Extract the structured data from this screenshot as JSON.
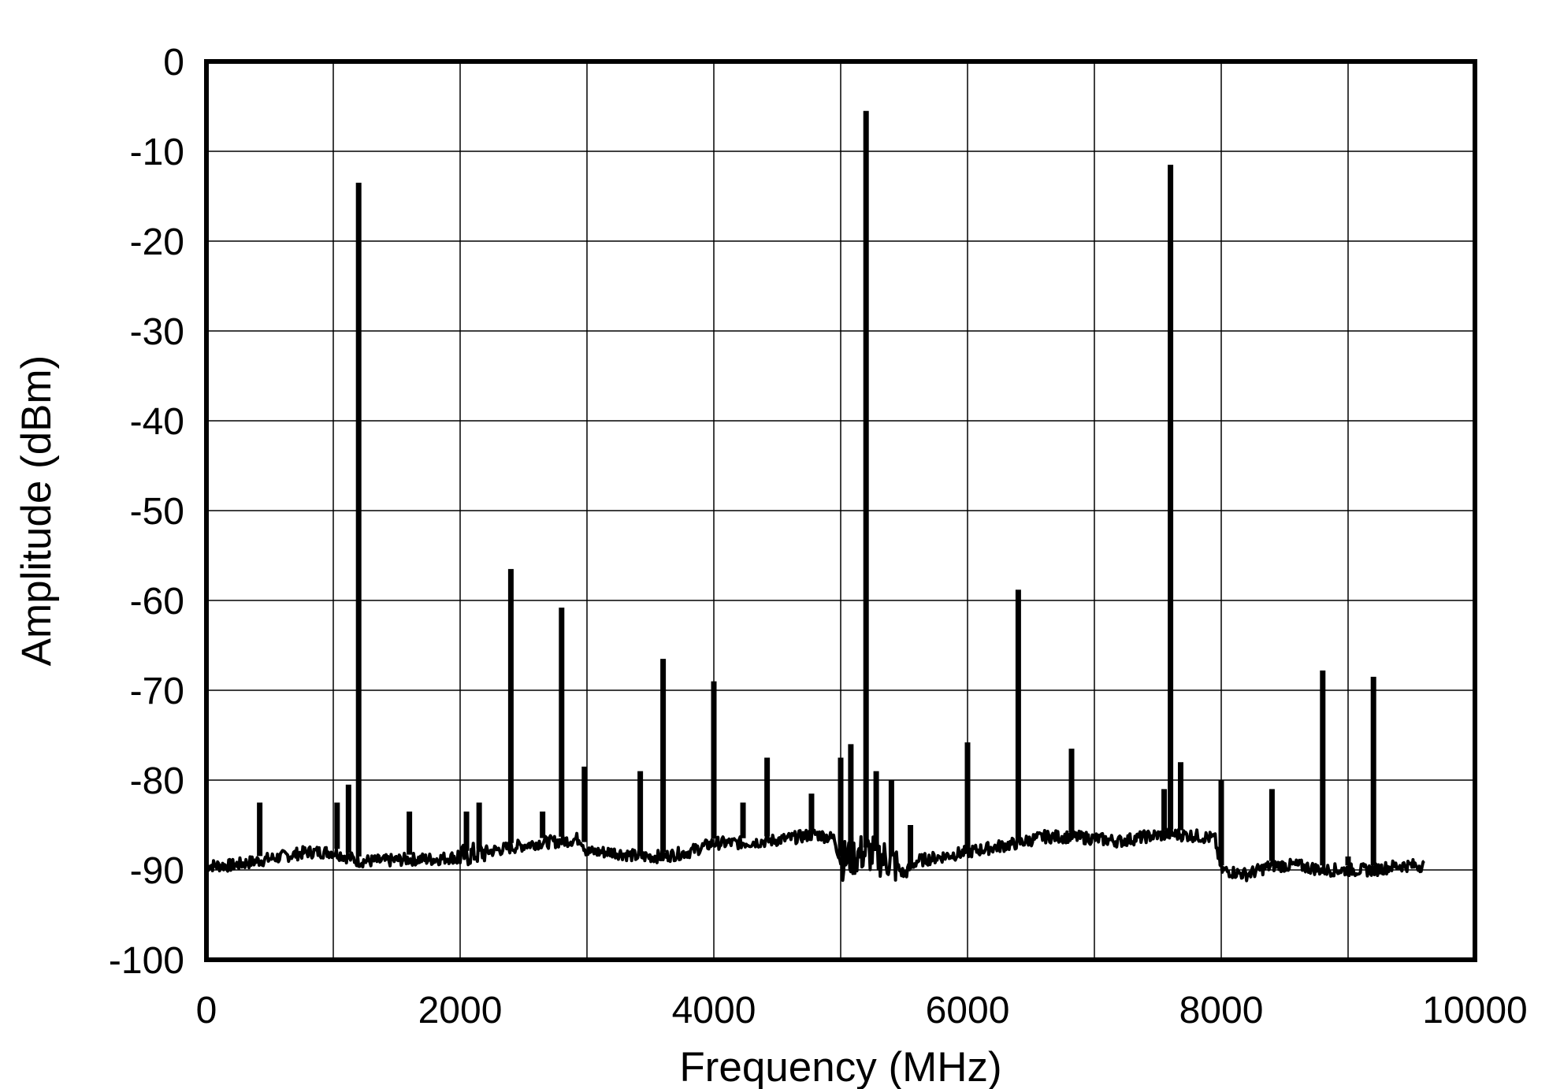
{
  "chart_data": {
    "type": "line",
    "title": "",
    "xlabel": "Frequency (MHz)",
    "ylabel": "Amplitude (dBm)",
    "xlim": [
      0,
      10000
    ],
    "ylim": [
      -100,
      0
    ],
    "x_ticks": [
      0,
      2000,
      4000,
      6000,
      8000,
      10000
    ],
    "y_ticks": [
      0,
      -10,
      -20,
      -30,
      -40,
      -50,
      -60,
      -70,
      -80,
      -90,
      -100
    ],
    "x_tick_labels": [
      "0",
      "2000",
      "4000",
      "6000",
      "8000",
      "10000"
    ],
    "y_tick_labels": [
      "0",
      "-10",
      "-20",
      "-30",
      "-40",
      "-50",
      "-60",
      "-70",
      "-80",
      "-90",
      "-100"
    ],
    "grid": true,
    "legend": "none",
    "noise_floor": {
      "x": [
        0,
        200,
        400,
        600,
        800,
        1000,
        1200,
        1400,
        1600,
        1800,
        2000,
        2200,
        2400,
        2600,
        2800,
        2950,
        3000,
        3200,
        3400,
        3600,
        3800,
        4000,
        4200,
        4400,
        4600,
        4800,
        4950,
        5000,
        5200,
        5400,
        5500,
        5600,
        5800,
        6000,
        6200,
        6400,
        6600,
        6800,
        7000,
        7200,
        7400,
        7600,
        7800,
        7950,
        8000,
        8200,
        8400,
        8600,
        8800,
        9000,
        9200,
        9400,
        9600
      ],
      "y": [
        -89.5,
        -89.5,
        -89,
        -88.5,
        -88,
        -88,
        -89,
        -89,
        -88.8,
        -88.8,
        -88.5,
        -88,
        -87.5,
        -87,
        -86.8,
        -86.5,
        -88,
        -88,
        -88.5,
        -88.5,
        -88,
        -87,
        -87,
        -86.8,
        -86.5,
        -86,
        -86.5,
        -89,
        -88,
        -89,
        -90.5,
        -89,
        -88.5,
        -88,
        -87.5,
        -87,
        -86.3,
        -86.3,
        -86.5,
        -86.8,
        -86.3,
        -86,
        -86.2,
        -86.5,
        -90,
        -90.5,
        -89.5,
        -89.5,
        -90,
        -90,
        -90,
        -89.5,
        -89.5
      ]
    },
    "peaks": [
      {
        "x": 1200,
        "y": -13.5
      },
      {
        "x": 1120,
        "y": -80.5
      },
      {
        "x": 1030,
        "y": -82.5
      },
      {
        "x": 420,
        "y": -82.5
      },
      {
        "x": 1600,
        "y": -83.5
      },
      {
        "x": 2050,
        "y": -83.5
      },
      {
        "x": 2150,
        "y": -82.5
      },
      {
        "x": 2400,
        "y": -56.5
      },
      {
        "x": 2650,
        "y": -83.5
      },
      {
        "x": 2800,
        "y": -60.8
      },
      {
        "x": 2980,
        "y": -78.5
      },
      {
        "x": 3420,
        "y": -79
      },
      {
        "x": 3600,
        "y": -66.5
      },
      {
        "x": 4000,
        "y": -69
      },
      {
        "x": 4230,
        "y": -82.5
      },
      {
        "x": 4420,
        "y": -77.5
      },
      {
        "x": 4770,
        "y": -81.5
      },
      {
        "x": 5000,
        "y": -77.5
      },
      {
        "x": 5080,
        "y": -76
      },
      {
        "x": 5200,
        "y": -5.5
      },
      {
        "x": 5280,
        "y": -79
      },
      {
        "x": 5400,
        "y": -80
      },
      {
        "x": 5550,
        "y": -85
      },
      {
        "x": 6000,
        "y": -75.8
      },
      {
        "x": 6400,
        "y": -58.8
      },
      {
        "x": 6820,
        "y": -76.5
      },
      {
        "x": 7550,
        "y": -81
      },
      {
        "x": 7600,
        "y": -11.5
      },
      {
        "x": 7680,
        "y": -78
      },
      {
        "x": 8000,
        "y": -80
      },
      {
        "x": 8400,
        "y": -81
      },
      {
        "x": 8800,
        "y": -67.8
      },
      {
        "x": 9000,
        "y": -88.5
      },
      {
        "x": 9200,
        "y": -68.5
      }
    ]
  }
}
